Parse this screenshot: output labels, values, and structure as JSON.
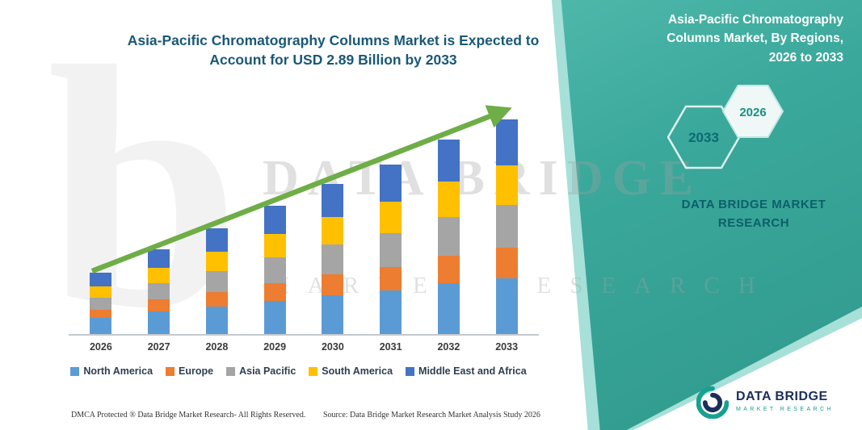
{
  "titles": {
    "main_line1": "Asia-Pacific Chromatography Columns Market is Expected to",
    "main_line2": "Account for USD 2.89 Billion by 2033"
  },
  "side_panel": {
    "title": "Asia-Pacific Chromatography Columns Market, By Regions, 2026 to 2033",
    "hex_back_label": "2033",
    "hex_front_label": "2026",
    "brand": "DATA BRIDGE MARKET RESEARCH",
    "panel_color_start": "#67ccbe",
    "panel_color_end": "#2f998c"
  },
  "watermark": {
    "letter": "b",
    "line1": "DATA BRIDGE",
    "line2": "MARKET RESEARCH"
  },
  "footer": {
    "dmca": "DMCA Protected ® Data Bridge Market Research-  All Rights Reserved.",
    "source": "Source: Data Bridge Market Research  Market Analysis Study 2026"
  },
  "logo": {
    "name": "DATA BRIDGE",
    "tagline": "MARKET RESEARCH"
  },
  "icons": {
    "logo_icon": "b-swirl",
    "trend_icon": "upward-arrow"
  },
  "chart_data": {
    "type": "bar",
    "stacked": true,
    "title": "Asia-Pacific Chromatography Columns Market is Expected to Account for USD 2.89 Billion by 2033",
    "unit": "USD Billion",
    "categories": [
      "2026",
      "2027",
      "2028",
      "2029",
      "2030",
      "2031",
      "2032",
      "2033"
    ],
    "series": [
      {
        "name": "North America",
        "color": "#5B9BD5",
        "values": [
          0.22,
          0.3,
          0.37,
          0.45,
          0.52,
          0.59,
          0.68,
          0.75
        ]
      },
      {
        "name": "Europe",
        "color": "#ED7D31",
        "values": [
          0.11,
          0.16,
          0.2,
          0.24,
          0.28,
          0.32,
          0.37,
          0.41
        ]
      },
      {
        "name": "Asia Pacific",
        "color": "#A5A5A5",
        "values": [
          0.16,
          0.22,
          0.28,
          0.35,
          0.4,
          0.46,
          0.52,
          0.58
        ]
      },
      {
        "name": "South America",
        "color": "#FFC000",
        "values": [
          0.15,
          0.21,
          0.26,
          0.32,
          0.37,
          0.42,
          0.48,
          0.53
        ]
      },
      {
        "name": "Middle East and Africa",
        "color": "#4472C4",
        "values": [
          0.18,
          0.25,
          0.31,
          0.38,
          0.45,
          0.5,
          0.57,
          0.62
        ]
      }
    ],
    "totals": [
      0.82,
      1.14,
      1.42,
      1.74,
      2.02,
      2.29,
      2.62,
      2.89
    ],
    "ylim": [
      0,
      3.2
    ],
    "grid": false,
    "legend_position": "bottom",
    "trend_arrow": true,
    "arrow_color": "#6fad47"
  }
}
